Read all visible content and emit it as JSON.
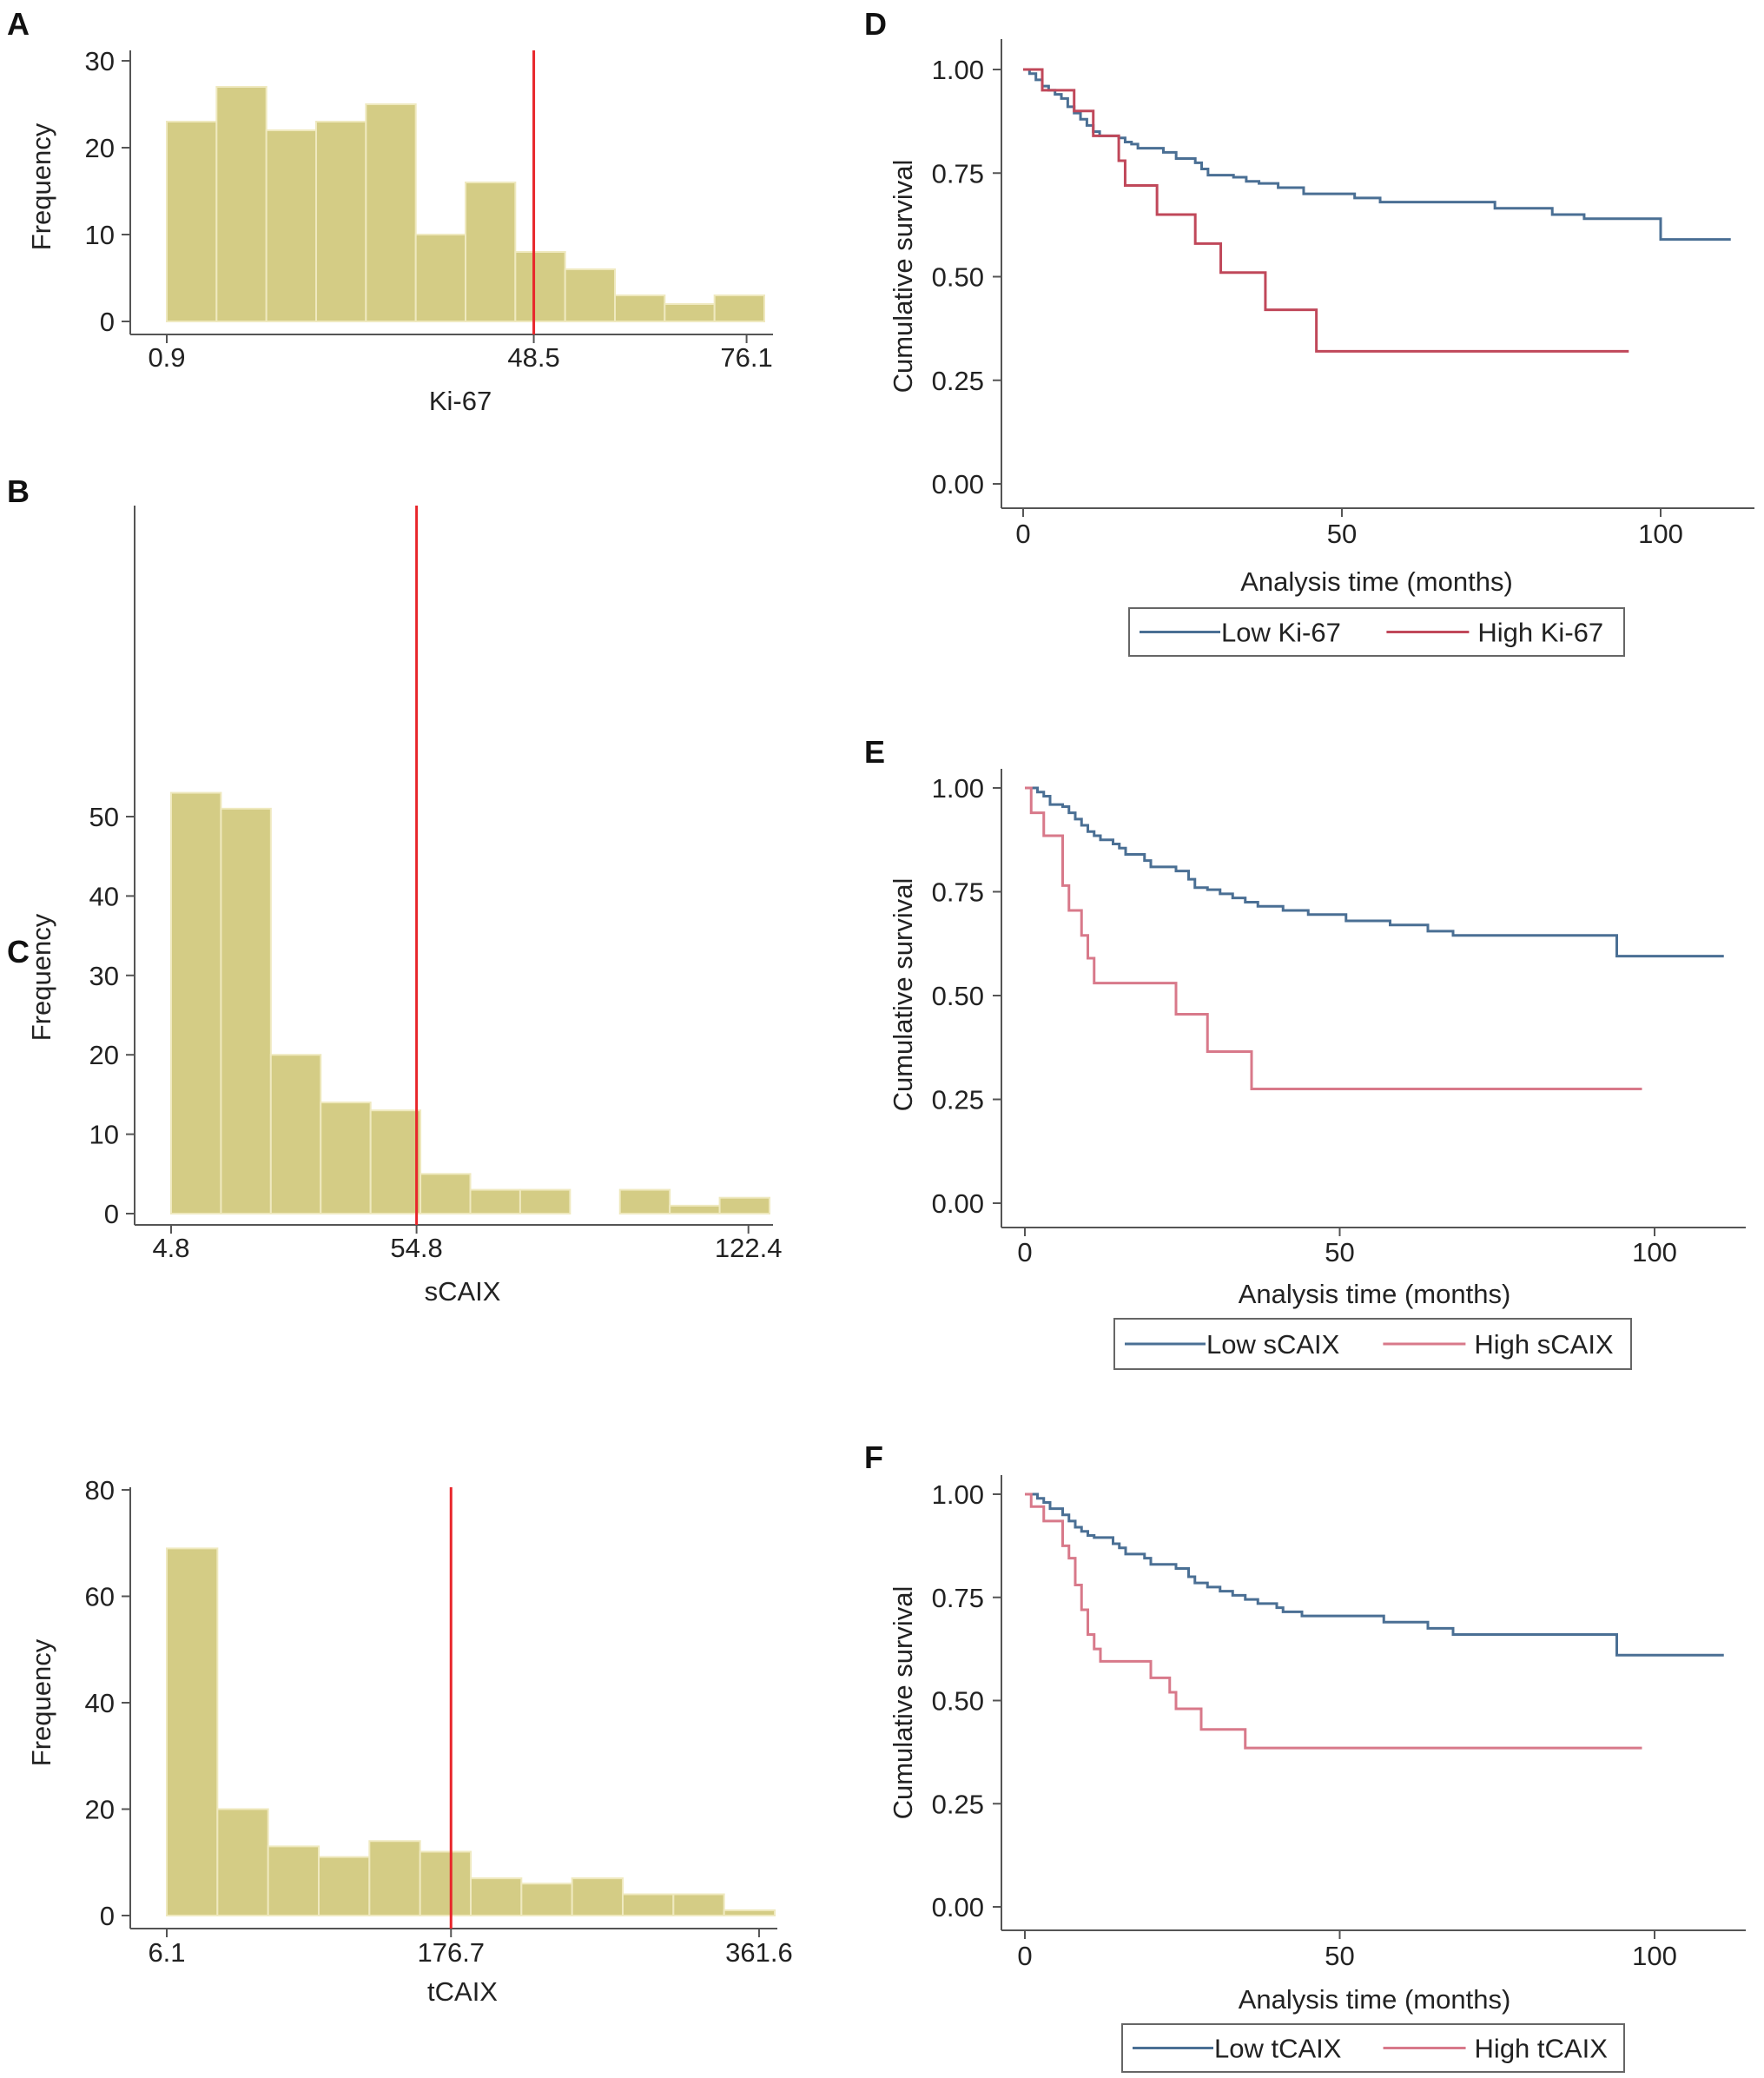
{
  "colors": {
    "bar": "#d4cc85",
    "bar_edge": "#efe9bf",
    "cutoff": "#e8262b",
    "axis": "#555555",
    "low_group": "#4a6f94",
    "high_group_d": "#c0485a",
    "high_group_ef": "#d8798a"
  },
  "chart_data": [
    {
      "panel": "A",
      "type": "bar",
      "subtype": "histogram",
      "xlabel": "Ki-67",
      "ylabel": "Frequency",
      "xlim": [
        0.9,
        78.4
      ],
      "ylim": [
        0,
        30
      ],
      "yticks": [
        0,
        10,
        20,
        30
      ],
      "xticks": [
        0.9,
        48.5,
        76.1
      ],
      "xtick_labels": [
        "0.9",
        "48.5",
        "76.1"
      ],
      "bin_start": 0.9,
      "bin_width": 6.46,
      "values": [
        23,
        27,
        22,
        23,
        25,
        10,
        16,
        8,
        6,
        3,
        2,
        3
      ],
      "cutoff": 48.5,
      "grid": false
    },
    {
      "panel": "B",
      "type": "bar",
      "subtype": "histogram",
      "xlabel": "sCAIX",
      "ylabel": "Frequency",
      "xlim": [
        4.8,
        126.7
      ],
      "ylim": [
        0,
        53
      ],
      "yticks": [
        0,
        10,
        20,
        30,
        40,
        50
      ],
      "xticks": [
        4.8,
        54.8,
        122.4
      ],
      "xtick_labels": [
        "4.8",
        "54.8",
        "122.4"
      ],
      "bin_start": 4.8,
      "bin_width": 10.16,
      "values": [
        53,
        51,
        20,
        14,
        13,
        5,
        3,
        3,
        0,
        3,
        1,
        2
      ],
      "cutoff": 54.8,
      "grid": false
    },
    {
      "panel": "C",
      "type": "bar",
      "subtype": "histogram",
      "xlabel": "tCAIX",
      "ylabel": "Frequency",
      "xlim": [
        6.1,
        371.0
      ],
      "ylim": [
        0,
        80
      ],
      "yticks": [
        0,
        20,
        40,
        60,
        80
      ],
      "xticks": [
        6.1,
        176.7,
        361.6
      ],
      "xtick_labels": [
        "6.1",
        "176.7",
        "361.6"
      ],
      "bin_start": 6.1,
      "bin_width": 30.4,
      "values": [
        69,
        20,
        13,
        11,
        14,
        12,
        7,
        6,
        7,
        4,
        4,
        1
      ],
      "cutoff": 176.7,
      "grid": false
    },
    {
      "panel": "D",
      "type": "line",
      "subtype": "kaplan-meier",
      "xlabel": "Analysis time (months)",
      "ylabel": "Cumulative survival",
      "xlim": [
        0,
        112
      ],
      "ylim": [
        0,
        1
      ],
      "xticks": [
        0,
        50,
        100
      ],
      "yticks": [
        0.0,
        0.25,
        0.5,
        0.75,
        1.0
      ],
      "ytick_labels": [
        "0.00",
        "0.25",
        "0.50",
        "0.75",
        "1.00"
      ],
      "legend": [
        "Low Ki-67",
        "High Ki-67"
      ],
      "legend_position": "bottom",
      "series": [
        {
          "name": "Low Ki-67",
          "steps": [
            [
              0,
              1.0
            ],
            [
              1,
              0.99
            ],
            [
              2,
              0.975
            ],
            [
              3,
              0.96
            ],
            [
              4,
              0.95
            ],
            [
              5,
              0.94
            ],
            [
              6,
              0.93
            ],
            [
              7,
              0.91
            ],
            [
              8,
              0.895
            ],
            [
              9,
              0.88
            ],
            [
              10,
              0.865
            ],
            [
              11,
              0.85
            ],
            [
              12,
              0.84
            ],
            [
              15,
              0.835
            ],
            [
              16,
              0.825
            ],
            [
              17,
              0.82
            ],
            [
              18,
              0.81
            ],
            [
              22,
              0.8
            ],
            [
              24,
              0.785
            ],
            [
              27,
              0.775
            ],
            [
              28,
              0.76
            ],
            [
              29,
              0.745
            ],
            [
              33,
              0.74
            ],
            [
              35,
              0.73
            ],
            [
              37,
              0.725
            ],
            [
              40,
              0.715
            ],
            [
              44,
              0.7
            ],
            [
              52,
              0.69
            ],
            [
              56,
              0.68
            ],
            [
              74,
              0.665
            ],
            [
              83,
              0.65
            ],
            [
              88,
              0.64
            ],
            [
              100,
              0.59
            ],
            [
              111,
              0.59
            ]
          ]
        },
        {
          "name": "High Ki-67",
          "steps": [
            [
              0,
              1.0
            ],
            [
              3,
              0.95
            ],
            [
              8,
              0.9
            ],
            [
              11,
              0.84
            ],
            [
              15,
              0.78
            ],
            [
              16,
              0.72
            ],
            [
              21,
              0.65
            ],
            [
              27,
              0.58
            ],
            [
              31,
              0.51
            ],
            [
              38,
              0.42
            ],
            [
              46,
              0.32
            ],
            [
              95,
              0.32
            ]
          ]
        }
      ]
    },
    {
      "panel": "E",
      "type": "line",
      "subtype": "kaplan-meier",
      "xlabel": "Analysis time (months)",
      "ylabel": "Cumulative survival",
      "xlim": [
        0,
        112
      ],
      "ylim": [
        0,
        1
      ],
      "xticks": [
        0,
        50,
        100
      ],
      "yticks": [
        0.0,
        0.25,
        0.5,
        0.75,
        1.0
      ],
      "ytick_labels": [
        "0.00",
        "0.25",
        "0.50",
        "0.75",
        "1.00"
      ],
      "legend": [
        "Low sCAIX",
        "High sCAIX"
      ],
      "legend_position": "bottom",
      "series": [
        {
          "name": "Low sCAIX",
          "steps": [
            [
              0,
              1.0
            ],
            [
              2,
              0.99
            ],
            [
              3,
              0.98
            ],
            [
              4,
              0.96
            ],
            [
              6,
              0.955
            ],
            [
              7,
              0.94
            ],
            [
              8,
              0.925
            ],
            [
              9,
              0.91
            ],
            [
              10,
              0.895
            ],
            [
              11,
              0.885
            ],
            [
              12,
              0.875
            ],
            [
              14,
              0.865
            ],
            [
              15,
              0.855
            ],
            [
              16,
              0.84
            ],
            [
              19,
              0.825
            ],
            [
              20,
              0.81
            ],
            [
              24,
              0.8
            ],
            [
              26,
              0.78
            ],
            [
              27,
              0.76
            ],
            [
              29,
              0.755
            ],
            [
              31,
              0.745
            ],
            [
              33,
              0.735
            ],
            [
              35,
              0.725
            ],
            [
              37,
              0.715
            ],
            [
              41,
              0.705
            ],
            [
              45,
              0.695
            ],
            [
              51,
              0.68
            ],
            [
              58,
              0.67
            ],
            [
              64,
              0.655
            ],
            [
              68,
              0.645
            ],
            [
              94,
              0.595
            ],
            [
              111,
              0.595
            ]
          ]
        },
        {
          "name": "High sCAIX",
          "steps": [
            [
              0,
              1.0
            ],
            [
              1,
              0.94
            ],
            [
              3,
              0.885
            ],
            [
              6,
              0.765
            ],
            [
              7,
              0.705
            ],
            [
              9,
              0.645
            ],
            [
              10,
              0.59
            ],
            [
              11,
              0.53
            ],
            [
              24,
              0.455
            ],
            [
              29,
              0.365
            ],
            [
              36,
              0.275
            ],
            [
              98,
              0.275
            ]
          ]
        }
      ]
    },
    {
      "panel": "F",
      "type": "line",
      "subtype": "kaplan-meier",
      "xlabel": "Analysis time (months)",
      "ylabel": "Cumulative survival",
      "xlim": [
        0,
        112
      ],
      "ylim": [
        0,
        1
      ],
      "xticks": [
        0,
        50,
        100
      ],
      "yticks": [
        0.0,
        0.25,
        0.5,
        0.75,
        1.0
      ],
      "ytick_labels": [
        "0.00",
        "0.25",
        "0.50",
        "0.75",
        "1.00"
      ],
      "legend": [
        "Low tCAIX",
        "High tCAIX"
      ],
      "legend_position": "bottom",
      "series": [
        {
          "name": "Low tCAIX",
          "steps": [
            [
              0,
              1.0
            ],
            [
              2,
              0.99
            ],
            [
              3,
              0.98
            ],
            [
              4,
              0.965
            ],
            [
              6,
              0.95
            ],
            [
              7,
              0.935
            ],
            [
              8,
              0.92
            ],
            [
              9,
              0.91
            ],
            [
              10,
              0.9
            ],
            [
              11,
              0.895
            ],
            [
              14,
              0.88
            ],
            [
              15,
              0.87
            ],
            [
              16,
              0.855
            ],
            [
              19,
              0.845
            ],
            [
              20,
              0.83
            ],
            [
              24,
              0.82
            ],
            [
              26,
              0.8
            ],
            [
              27,
              0.785
            ],
            [
              29,
              0.775
            ],
            [
              31,
              0.765
            ],
            [
              33,
              0.755
            ],
            [
              35,
              0.745
            ],
            [
              37,
              0.735
            ],
            [
              40,
              0.725
            ],
            [
              41,
              0.715
            ],
            [
              44,
              0.705
            ],
            [
              57,
              0.69
            ],
            [
              64,
              0.675
            ],
            [
              68,
              0.66
            ],
            [
              94,
              0.61
            ],
            [
              111,
              0.61
            ]
          ]
        },
        {
          "name": "High tCAIX",
          "steps": [
            [
              0,
              1.0
            ],
            [
              1,
              0.97
            ],
            [
              3,
              0.935
            ],
            [
              6,
              0.875
            ],
            [
              7,
              0.845
            ],
            [
              8,
              0.78
            ],
            [
              9,
              0.72
            ],
            [
              10,
              0.66
            ],
            [
              11,
              0.625
            ],
            [
              12,
              0.595
            ],
            [
              20,
              0.555
            ],
            [
              23,
              0.52
            ],
            [
              24,
              0.48
            ],
            [
              28,
              0.43
            ],
            [
              35,
              0.385
            ],
            [
              98,
              0.385
            ]
          ]
        }
      ]
    }
  ]
}
